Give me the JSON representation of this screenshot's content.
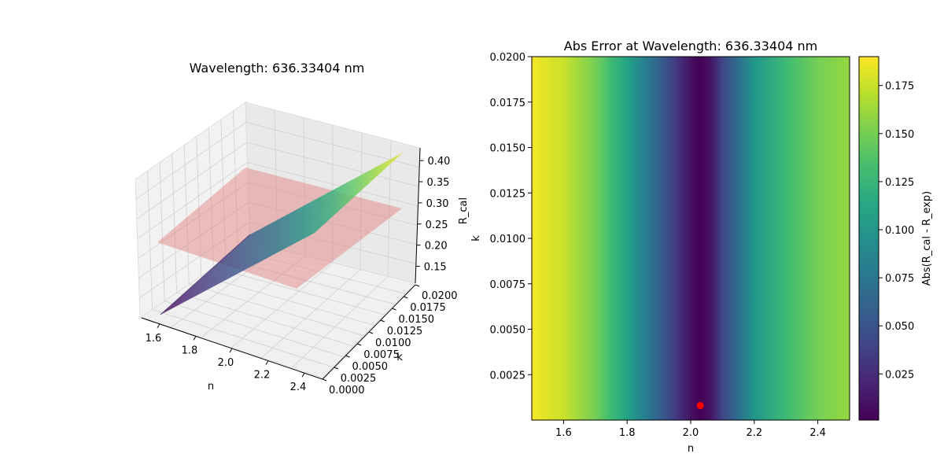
{
  "chart_data": [
    {
      "type": "surface3d",
      "title": "Wavelength: 636.33404 nm",
      "xlabel": "n",
      "ylabel": "k",
      "zlabel": "R_cal",
      "xlim": [
        1.5,
        2.5
      ],
      "ylim": [
        0.0,
        0.02
      ],
      "zlim": [
        0.11,
        0.43
      ],
      "x_ticks": [
        "1.6",
        "1.8",
        "2.0",
        "2.2",
        "2.4"
      ],
      "y_ticks": [
        "0.0000",
        "0.0025",
        "0.0050",
        "0.0075",
        "0.0100",
        "0.0125",
        "0.0150",
        "0.0175",
        "0.0200"
      ],
      "z_ticks": [
        "0.15",
        "0.20",
        "0.25",
        "0.30",
        "0.35",
        "0.40"
      ],
      "surface": {
        "name": "R_cal",
        "colormap": "viridis",
        "n": [
          1.5,
          1.6,
          1.7,
          1.8,
          1.9,
          2.0,
          2.1,
          2.2,
          2.3,
          2.4,
          2.5
        ],
        "r_cal": [
          0.115,
          0.14,
          0.165,
          0.19,
          0.215,
          0.245,
          0.28,
          0.315,
          0.35,
          0.385,
          0.42
        ]
      },
      "plane": {
        "name": "R_exp",
        "value": 0.23,
        "color": "#e07a7a"
      },
      "grid": true
    },
    {
      "type": "heatmap",
      "title": "Abs Error at Wavelength: 636.33404 nm",
      "xlabel": "n",
      "ylabel": "k",
      "xlim": [
        1.5,
        2.5
      ],
      "ylim": [
        0.0,
        0.02
      ],
      "x_ticks": [
        "1.6",
        "1.8",
        "2.0",
        "2.2",
        "2.4"
      ],
      "y_ticks": [
        "0.0025",
        "0.0050",
        "0.0075",
        "0.0100",
        "0.0125",
        "0.0150",
        "0.0175",
        "0.0200"
      ],
      "colormap": "viridis",
      "colorbar": {
        "label": "Abs(R_cal - R_exp)",
        "range": [
          0.001,
          0.19
        ],
        "ticks": [
          "0.025",
          "0.050",
          "0.075",
          "0.100",
          "0.125",
          "0.150",
          "0.175"
        ]
      },
      "error_profile": {
        "n": [
          1.5,
          1.6,
          1.7,
          1.75,
          1.8,
          1.85,
          1.9,
          1.95,
          2.0,
          2.03,
          2.06,
          2.1,
          2.15,
          2.2,
          2.3,
          2.4,
          2.5
        ],
        "abs_error": [
          0.188,
          0.175,
          0.15,
          0.13,
          0.11,
          0.085,
          0.06,
          0.035,
          0.01,
          0.001,
          0.01,
          0.04,
          0.07,
          0.1,
          0.13,
          0.15,
          0.16
        ]
      },
      "marker": {
        "n": 2.03,
        "k": 0.0008,
        "color": "#ff0000"
      }
    }
  ]
}
